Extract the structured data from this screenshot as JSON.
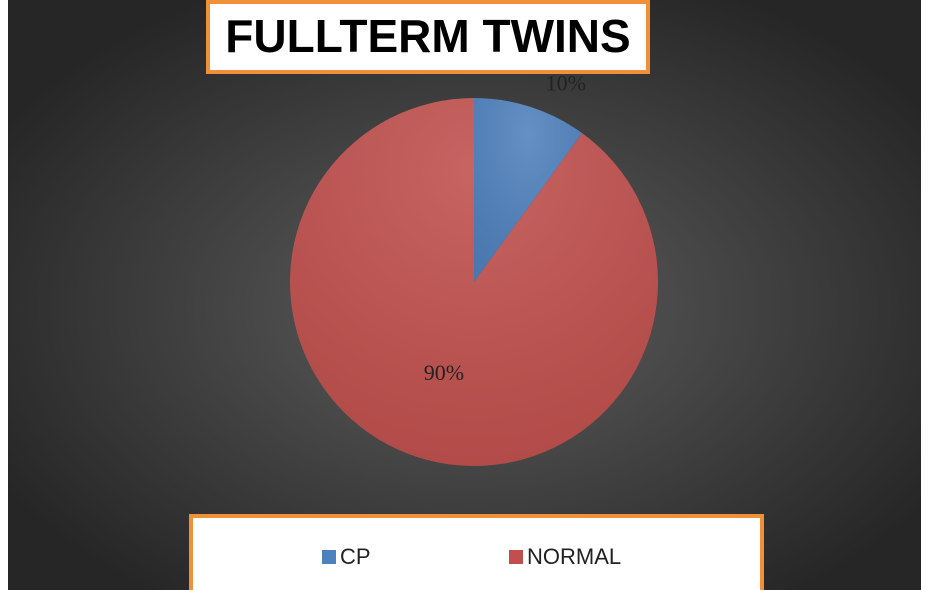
{
  "chart_data": {
    "type": "pie",
    "title": "FULLTERM TWINS",
    "categories": [
      "CP",
      "NORMAL"
    ],
    "values": [
      10,
      90
    ],
    "value_labels": [
      "10%",
      "90%"
    ],
    "colors": [
      "#4f81bd",
      "#c0504d"
    ],
    "legend": "bottom"
  }
}
